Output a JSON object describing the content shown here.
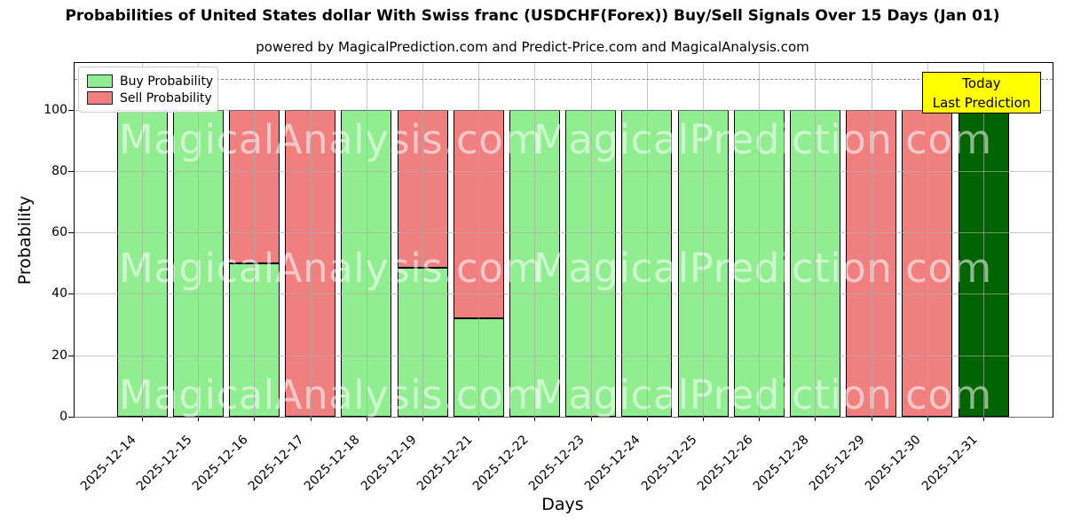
{
  "title": "Probabilities of United States dollar With Swiss franc (USDCHF(Forex)) Buy/Sell Signals Over 15 Days (Jan 01)",
  "subtitle": "powered by MagicalPrediction.com and Predict-Price.com and MagicalAnalysis.com",
  "legend": {
    "items": [
      {
        "label": "Buy Probability",
        "color": "#90EE90"
      },
      {
        "label": "Sell Probability",
        "color": "#F08080"
      }
    ]
  },
  "annotation": {
    "line1": "Today",
    "line2": "Last Prediction",
    "bg": "#FFFF00"
  },
  "axes": {
    "xlabel": "Days",
    "ylabel": "Probability",
    "yticks": [
      0,
      20,
      40,
      60,
      80,
      100
    ],
    "ymax": 115.2,
    "dashed_line_y": 110
  },
  "watermarks": {
    "left": "MagicalAnalysis.com",
    "right": "MagicalPrediction.com"
  },
  "colors": {
    "buy": "#90EE90",
    "sell": "#F08080",
    "last_prediction_bar": "#006400",
    "annotation_bg": "#FFFF00",
    "grid": "#AAAAAA",
    "dashed_line": "#8A8A8A",
    "bar_edge": "#000000"
  },
  "chart_data": {
    "type": "bar",
    "stacked": true,
    "title": "Probabilities of United States dollar With Swiss franc (USDCHF(Forex)) Buy/Sell Signals Over 15 Days (Jan 01)",
    "xlabel": "Days",
    "ylabel": "Probability",
    "ylim": [
      0,
      115
    ],
    "grid": true,
    "legend_position": "upper left",
    "annotation_line_y": 110,
    "categories": [
      "2025-12-14",
      "2025-12-15",
      "2025-12-16",
      "2025-12-17",
      "2025-12-18",
      "2025-12-19",
      "2025-12-21",
      "2025-12-22",
      "2025-12-23",
      "2025-12-24",
      "2025-12-25",
      "2025-12-26",
      "2025-12-28",
      "2025-12-29",
      "2025-12-30",
      "2025-12-31"
    ],
    "series": [
      {
        "name": "Buy Probability",
        "color": "#90EE90",
        "point_colors": {
          "15": "#006400"
        },
        "values": [
          100,
          100,
          50,
          0,
          100,
          48.5,
          32,
          100,
          100,
          100,
          100,
          100,
          100,
          0,
          0,
          100
        ]
      },
      {
        "name": "Sell Probability",
        "color": "#F08080",
        "point_colors": {},
        "values": [
          0,
          0,
          50,
          100,
          0,
          51.5,
          68,
          0,
          0,
          0,
          0,
          0,
          0,
          100,
          100,
          0
        ]
      }
    ]
  }
}
